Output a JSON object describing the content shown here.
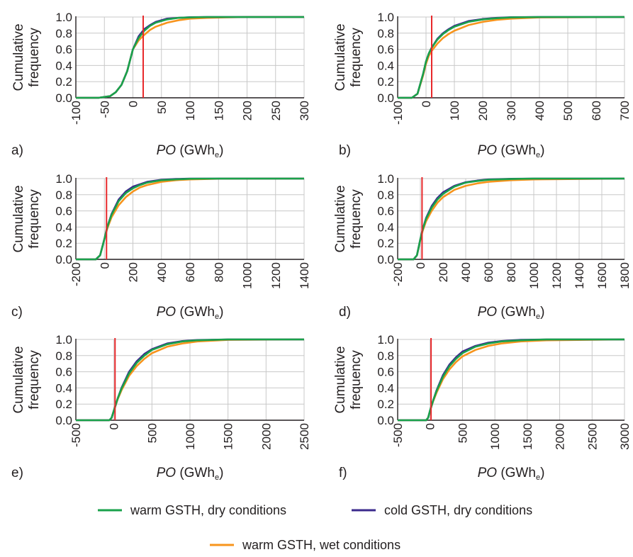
{
  "colors": {
    "warm_dry": "#1aa24b",
    "cold_dry": "#3b2a8c",
    "warm_wet": "#f7941d",
    "reference_line": "#e8282b",
    "grid": "#c8c8c8",
    "axis": "#231f20"
  },
  "axis_text": {
    "ylabel_line1": "Cumulative",
    "ylabel_line2": "frequency",
    "xlabel_var": "PO",
    "xlabel_unit_open": " (GWh",
    "xlabel_unit_sub": "e",
    "xlabel_unit_close": ")"
  },
  "legend": [
    {
      "key": "warm_dry",
      "label": "warm GSTH, dry conditions"
    },
    {
      "key": "cold_dry",
      "label": "cold GSTH, dry conditions"
    },
    {
      "key": "warm_wet",
      "label": "warm GSTH, wet conditions"
    }
  ],
  "chart_data": [
    {
      "type": "line",
      "panel": "a)",
      "xlim": [
        -100,
        300
      ],
      "ylim": [
        0,
        1
      ],
      "xticks": [
        -100,
        -50,
        0,
        50,
        100,
        150,
        200,
        250,
        300
      ],
      "yticks": [
        0.0,
        0.2,
        0.4,
        0.6,
        0.8,
        1.0
      ],
      "vline_x": 18,
      "series": [
        {
          "key": "warm_dry",
          "x": [
            -100,
            -60,
            -40,
            -30,
            -20,
            -10,
            0,
            10,
            20,
            30,
            40,
            60,
            80,
            100,
            130,
            160,
            200,
            300
          ],
          "y": [
            0,
            0,
            0.02,
            0.07,
            0.16,
            0.33,
            0.6,
            0.74,
            0.83,
            0.89,
            0.93,
            0.97,
            0.99,
            0.995,
            1,
            1,
            1,
            1
          ]
        },
        {
          "key": "cold_dry",
          "x": [
            -100,
            -60,
            -40,
            -30,
            -20,
            -10,
            0,
            10,
            20,
            30,
            40,
            60,
            80,
            100,
            130,
            160,
            200,
            300
          ],
          "y": [
            0,
            0,
            0.02,
            0.07,
            0.16,
            0.33,
            0.6,
            0.76,
            0.85,
            0.9,
            0.94,
            0.98,
            0.99,
            0.997,
            1,
            1,
            1,
            1
          ]
        },
        {
          "key": "warm_wet",
          "x": [
            -100,
            -60,
            -40,
            -30,
            -20,
            -10,
            0,
            10,
            20,
            30,
            40,
            60,
            80,
            100,
            130,
            160,
            200,
            300
          ],
          "y": [
            0,
            0,
            0.02,
            0.07,
            0.16,
            0.33,
            0.6,
            0.71,
            0.78,
            0.84,
            0.88,
            0.93,
            0.96,
            0.98,
            0.99,
            0.995,
            1,
            1
          ]
        }
      ]
    },
    {
      "type": "line",
      "panel": "b)",
      "xlim": [
        -100,
        700
      ],
      "ylim": [
        0,
        1
      ],
      "xticks": [
        -100,
        0,
        100,
        200,
        300,
        400,
        500,
        600,
        700
      ],
      "yticks": [
        0.0,
        0.2,
        0.4,
        0.6,
        0.8,
        1.0
      ],
      "vline_x": 20,
      "series": [
        {
          "key": "warm_dry",
          "x": [
            -100,
            -50,
            -30,
            -10,
            0,
            10,
            20,
            40,
            60,
            80,
            100,
            150,
            200,
            250,
            300,
            400,
            700
          ],
          "y": [
            0,
            0,
            0.05,
            0.3,
            0.45,
            0.55,
            0.62,
            0.72,
            0.79,
            0.84,
            0.88,
            0.94,
            0.97,
            0.985,
            0.995,
            1,
            1
          ]
        },
        {
          "key": "cold_dry",
          "x": [
            -100,
            -50,
            -30,
            -10,
            0,
            10,
            20,
            40,
            60,
            80,
            100,
            150,
            200,
            250,
            300,
            400,
            700
          ],
          "y": [
            0,
            0,
            0.05,
            0.3,
            0.45,
            0.55,
            0.62,
            0.73,
            0.8,
            0.85,
            0.89,
            0.95,
            0.975,
            0.99,
            0.997,
            1,
            1
          ]
        },
        {
          "key": "warm_wet",
          "x": [
            -100,
            -50,
            -30,
            -10,
            0,
            10,
            20,
            40,
            60,
            80,
            100,
            150,
            200,
            250,
            300,
            400,
            700
          ],
          "y": [
            0,
            0,
            0.05,
            0.28,
            0.42,
            0.52,
            0.58,
            0.67,
            0.74,
            0.79,
            0.83,
            0.9,
            0.94,
            0.965,
            0.98,
            0.995,
            1
          ]
        }
      ]
    },
    {
      "type": "line",
      "panel": "c)",
      "xlim": [
        -200,
        1400
      ],
      "ylim": [
        0,
        1
      ],
      "xticks": [
        -200,
        0,
        200,
        400,
        600,
        800,
        1000,
        1200,
        1400
      ],
      "yticks": [
        0.0,
        0.2,
        0.4,
        0.6,
        0.8,
        1.0
      ],
      "vline_x": 15,
      "series": [
        {
          "key": "warm_dry",
          "x": [
            -200,
            -60,
            -30,
            0,
            20,
            50,
            100,
            150,
            200,
            250,
            300,
            400,
            500,
            600,
            800,
            1400
          ],
          "y": [
            0,
            0,
            0.05,
            0.25,
            0.4,
            0.55,
            0.72,
            0.82,
            0.88,
            0.92,
            0.95,
            0.98,
            0.99,
            0.997,
            1,
            1
          ]
        },
        {
          "key": "cold_dry",
          "x": [
            -200,
            -60,
            -30,
            0,
            20,
            50,
            100,
            150,
            200,
            250,
            300,
            400,
            500,
            600,
            800,
            1400
          ],
          "y": [
            0,
            0,
            0.05,
            0.25,
            0.4,
            0.56,
            0.74,
            0.84,
            0.9,
            0.93,
            0.96,
            0.985,
            0.995,
            1,
            1,
            1
          ]
        },
        {
          "key": "warm_wet",
          "x": [
            -200,
            -60,
            -30,
            0,
            20,
            50,
            100,
            150,
            200,
            250,
            300,
            400,
            500,
            600,
            800,
            1400
          ],
          "y": [
            0,
            0,
            0.05,
            0.25,
            0.38,
            0.52,
            0.67,
            0.77,
            0.84,
            0.89,
            0.92,
            0.96,
            0.98,
            0.99,
            0.998,
            1
          ]
        }
      ]
    },
    {
      "type": "line",
      "panel": "d)",
      "xlim": [
        -200,
        1800
      ],
      "ylim": [
        0,
        1
      ],
      "xticks": [
        -200,
        0,
        200,
        400,
        600,
        800,
        1000,
        1200,
        1400,
        1600,
        1800
      ],
      "yticks": [
        0.0,
        0.2,
        0.4,
        0.6,
        0.8,
        1.0
      ],
      "vline_x": 15,
      "series": [
        {
          "key": "warm_dry",
          "x": [
            -200,
            -60,
            -30,
            0,
            20,
            50,
            100,
            150,
            200,
            300,
            400,
            500,
            600,
            800,
            1000,
            1800
          ],
          "y": [
            0,
            0,
            0.05,
            0.25,
            0.37,
            0.5,
            0.64,
            0.74,
            0.81,
            0.9,
            0.95,
            0.97,
            0.985,
            0.995,
            1,
            1
          ]
        },
        {
          "key": "cold_dry",
          "x": [
            -200,
            -60,
            -30,
            0,
            20,
            50,
            100,
            150,
            200,
            300,
            400,
            500,
            600,
            800,
            1000,
            1800
          ],
          "y": [
            0,
            0,
            0.05,
            0.25,
            0.37,
            0.51,
            0.66,
            0.76,
            0.83,
            0.91,
            0.955,
            0.975,
            0.99,
            0.997,
            1,
            1
          ]
        },
        {
          "key": "warm_wet",
          "x": [
            -200,
            -60,
            -30,
            0,
            20,
            50,
            100,
            150,
            200,
            300,
            400,
            500,
            600,
            800,
            1000,
            1800
          ],
          "y": [
            0,
            0,
            0.05,
            0.24,
            0.35,
            0.47,
            0.6,
            0.7,
            0.77,
            0.86,
            0.91,
            0.94,
            0.96,
            0.98,
            0.99,
            1
          ]
        }
      ]
    },
    {
      "type": "line",
      "panel": "e)",
      "xlim": [
        -500,
        2500
      ],
      "ylim": [
        0,
        1
      ],
      "xticks": [
        -500,
        0,
        500,
        1000,
        1500,
        2000,
        2500
      ],
      "yticks": [
        0.0,
        0.2,
        0.4,
        0.6,
        0.8,
        1.0
      ],
      "vline_x": 15,
      "series": [
        {
          "key": "warm_dry",
          "x": [
            -500,
            -60,
            -30,
            0,
            50,
            100,
            200,
            300,
            400,
            500,
            700,
            900,
            1100,
            1500,
            2500
          ],
          "y": [
            0,
            0,
            0.03,
            0.12,
            0.27,
            0.39,
            0.58,
            0.71,
            0.8,
            0.87,
            0.94,
            0.975,
            0.99,
            1,
            1
          ]
        },
        {
          "key": "cold_dry",
          "x": [
            -500,
            -60,
            -30,
            0,
            50,
            100,
            200,
            300,
            400,
            500,
            700,
            900,
            1100,
            1500,
            2500
          ],
          "y": [
            0,
            0,
            0.03,
            0.12,
            0.27,
            0.4,
            0.6,
            0.73,
            0.82,
            0.88,
            0.95,
            0.98,
            0.993,
            1,
            1
          ]
        },
        {
          "key": "warm_wet",
          "x": [
            -500,
            -60,
            -30,
            0,
            50,
            100,
            200,
            300,
            400,
            500,
            700,
            900,
            1100,
            1500,
            2500
          ],
          "y": [
            0,
            0,
            0.03,
            0.12,
            0.26,
            0.37,
            0.55,
            0.67,
            0.76,
            0.83,
            0.91,
            0.95,
            0.975,
            0.995,
            1
          ]
        }
      ]
    },
    {
      "type": "line",
      "panel": "f)",
      "xlim": [
        -500,
        3000
      ],
      "ylim": [
        0,
        1
      ],
      "xticks": [
        -500,
        0,
        500,
        1000,
        1500,
        2000,
        2500,
        3000
      ],
      "yticks": [
        0.0,
        0.2,
        0.4,
        0.6,
        0.8,
        1.0
      ],
      "vline_x": 15,
      "series": [
        {
          "key": "warm_dry",
          "x": [
            -500,
            -60,
            -30,
            0,
            50,
            100,
            200,
            300,
            400,
            500,
            700,
            900,
            1100,
            1400,
            1800,
            3000
          ],
          "y": [
            0,
            0,
            0.03,
            0.12,
            0.25,
            0.36,
            0.54,
            0.67,
            0.76,
            0.83,
            0.91,
            0.95,
            0.975,
            0.99,
            1,
            1
          ]
        },
        {
          "key": "cold_dry",
          "x": [
            -500,
            -60,
            -30,
            0,
            50,
            100,
            200,
            300,
            400,
            500,
            700,
            900,
            1100,
            1400,
            1800,
            3000
          ],
          "y": [
            0,
            0,
            0.03,
            0.12,
            0.25,
            0.37,
            0.56,
            0.69,
            0.78,
            0.85,
            0.92,
            0.96,
            0.98,
            0.995,
            1,
            1
          ]
        },
        {
          "key": "warm_wet",
          "x": [
            -500,
            -60,
            -30,
            0,
            50,
            100,
            200,
            300,
            400,
            500,
            700,
            900,
            1100,
            1400,
            1800,
            3000
          ],
          "y": [
            0,
            0,
            0.03,
            0.12,
            0.24,
            0.34,
            0.51,
            0.63,
            0.72,
            0.79,
            0.87,
            0.92,
            0.95,
            0.975,
            0.99,
            1
          ]
        }
      ]
    }
  ]
}
